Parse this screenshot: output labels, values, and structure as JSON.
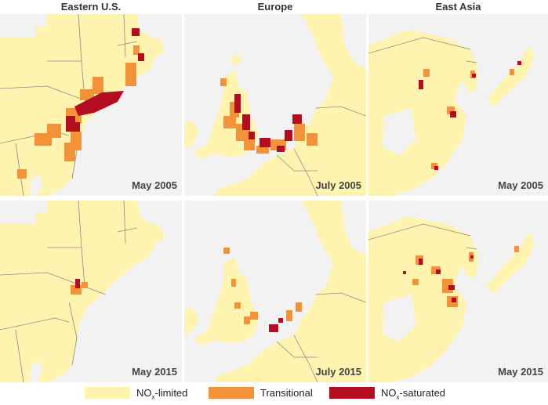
{
  "columns": [
    {
      "title": "Eastern U.S."
    },
    {
      "title": "Europe"
    },
    {
      "title": "East Asia"
    }
  ],
  "panels": {
    "us_2005": {
      "label": "May 2005"
    },
    "eu_2005": {
      "label": "July 2005"
    },
    "asia_2005": {
      "label": "May 2005"
    },
    "us_2015": {
      "label": "May 2015"
    },
    "eu_2015": {
      "label": "July 2015"
    },
    "asia_2015": {
      "label": "May 2015"
    }
  },
  "legend": {
    "items": [
      {
        "prefix": "NO",
        "sub": "x",
        "suffix": "-limited",
        "color": "#fff3b0"
      },
      {
        "prefix": "",
        "sub": "",
        "suffix": "Transitional",
        "color": "#f4923a"
      },
      {
        "prefix": "NO",
        "sub": "x",
        "suffix": "-saturated",
        "color": "#b30d21"
      }
    ]
  },
  "colors": {
    "limited": "#fff3b0",
    "transitional": "#f4923a",
    "saturated": "#b30d21",
    "no_data": "#f2f2f2",
    "border": "#8a8a8a"
  }
}
